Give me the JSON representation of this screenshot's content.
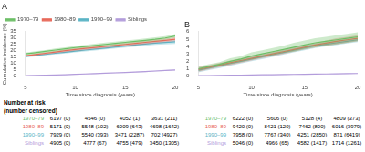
{
  "chart_data": [
    {
      "type": "line",
      "title": "A",
      "xlabel": "Time since diagnosis (years)",
      "ylabel": "Cumulative incidence (%)",
      "xlim": [
        5,
        20
      ],
      "ylim": [
        0,
        35
      ],
      "xticks": [
        5,
        10,
        15,
        20
      ],
      "yticks": [
        0,
        5,
        10,
        15,
        20,
        25,
        30,
        35
      ],
      "grid": false,
      "legend": "upper left",
      "x": [
        5,
        6,
        7,
        8,
        9,
        10,
        11,
        12,
        13,
        14,
        15,
        16,
        17,
        18,
        19,
        20
      ],
      "series": [
        {
          "name": "1970–79",
          "color": "#6dbf67",
          "values": [
            17.5,
            18.5,
            19.5,
            20.5,
            21.5,
            22.5,
            23.3,
            24.2,
            25.0,
            25.8,
            26.6,
            27.4,
            28.2,
            29.0,
            30.0,
            31.5
          ],
          "lower": [
            16.5,
            17.4,
            18.4,
            19.3,
            20.3,
            21.2,
            22.0,
            22.8,
            23.6,
            24.4,
            25.2,
            26.0,
            26.8,
            27.5,
            28.5,
            30.0
          ],
          "upper": [
            18.5,
            19.6,
            20.6,
            21.7,
            22.7,
            23.8,
            24.6,
            25.6,
            26.4,
            27.2,
            28.0,
            28.8,
            29.6,
            30.5,
            31.5,
            33.0
          ]
        },
        {
          "name": "1980–89",
          "color": "#e8695a",
          "values": [
            16.0,
            17.0,
            18.0,
            19.0,
            20.0,
            21.0,
            21.8,
            22.6,
            23.4,
            24.2,
            25.0,
            25.8,
            26.6,
            27.4,
            28.2,
            29.0
          ],
          "lower": [
            15.2,
            16.1,
            17.1,
            18.0,
            18.9,
            19.8,
            20.6,
            21.3,
            22.1,
            22.8,
            23.6,
            24.4,
            25.2,
            26.0,
            26.8,
            27.5
          ],
          "upper": [
            16.8,
            17.9,
            18.9,
            20.0,
            21.1,
            22.2,
            23.0,
            23.9,
            24.7,
            25.6,
            26.4,
            27.2,
            28.0,
            28.8,
            29.6,
            30.5
          ]
        },
        {
          "name": "1990–99",
          "color": "#5ab4c5",
          "values": [
            15.5,
            16.3,
            17.1,
            18.0,
            18.8,
            19.7,
            20.5,
            21.3,
            22.1,
            22.9,
            23.7,
            24.5,
            25.3,
            26.0,
            26.5,
            27.0
          ],
          "lower": [
            14.8,
            15.5,
            16.3,
            17.1,
            17.9,
            18.7,
            19.5,
            20.2,
            21.0,
            21.7,
            22.5,
            23.2,
            24.0,
            24.6,
            25.0,
            25.4
          ],
          "upper": [
            16.2,
            17.1,
            17.9,
            18.9,
            19.7,
            20.7,
            21.5,
            22.4,
            23.2,
            24.1,
            24.9,
            25.8,
            26.6,
            27.4,
            28.0,
            28.6
          ]
        },
        {
          "name": "Siblings",
          "color": "#b39ddb",
          "values": [
            0.3,
            0.5,
            0.7,
            0.9,
            1.1,
            1.4,
            1.7,
            2.0,
            2.3,
            2.6,
            2.9,
            3.2,
            3.6,
            4.0,
            4.4,
            4.8
          ],
          "lower": [
            0.1,
            0.3,
            0.5,
            0.7,
            0.9,
            1.1,
            1.4,
            1.7,
            2.0,
            2.3,
            2.6,
            2.9,
            3.2,
            3.6,
            4.0,
            4.4
          ],
          "upper": [
            0.5,
            0.7,
            0.9,
            1.1,
            1.3,
            1.7,
            2.0,
            2.3,
            2.6,
            2.9,
            3.2,
            3.5,
            4.0,
            4.4,
            4.8,
            5.2
          ]
        }
      ],
      "table": {
        "header": [
          "Number at risk",
          "(number censored)"
        ],
        "row_labels": [
          "1970–79",
          "1980–89",
          "1990–99",
          "Siblings"
        ],
        "row_colors": [
          "#6dbf67",
          "#e8695a",
          "#5ab4c5",
          "#b39ddb"
        ],
        "rows": [
          [
            "6197 (0)",
            "4546 (0)",
            "4052 (1)",
            "3631 (211)"
          ],
          [
            "5171 (0)",
            "5548 (102)",
            "6009 (643)",
            "4698 (1642)"
          ],
          [
            "7929 (0)",
            "5540 (393)",
            "3471 (2287)",
            "702 (4927)"
          ],
          [
            "4905 (0)",
            "4777 (67)",
            "4755 (479)",
            "3450 (1305)"
          ]
        ]
      }
    },
    {
      "type": "line",
      "title": "B",
      "xlabel": "Time since diagnosis (years)",
      "xlim": [
        5,
        20
      ],
      "ylim": [
        0,
        6
      ],
      "xticks": [
        5,
        10,
        15,
        20
      ],
      "yticks": [
        0,
        1,
        2,
        3,
        4,
        5,
        6
      ],
      "grid": false,
      "x": [
        5,
        6,
        7,
        8,
        9,
        10,
        11,
        12,
        13,
        14,
        15,
        16,
        17,
        18,
        19,
        20
      ],
      "series": [
        {
          "name": "1970–79",
          "color": "#6dbf67",
          "values": [
            1.0,
            1.3,
            1.6,
            2.0,
            2.3,
            2.7,
            3.0,
            3.3,
            3.6,
            3.9,
            4.2,
            4.5,
            4.7,
            4.9,
            5.1,
            5.3
          ],
          "lower": [
            0.7,
            1.0,
            1.3,
            1.6,
            1.9,
            2.2,
            2.5,
            2.8,
            3.1,
            3.3,
            3.6,
            3.9,
            4.1,
            4.3,
            4.5,
            4.7
          ],
          "upper": [
            1.3,
            1.6,
            1.9,
            2.4,
            2.7,
            3.2,
            3.5,
            3.8,
            4.1,
            4.5,
            4.8,
            5.1,
            5.3,
            5.5,
            5.7,
            5.9
          ]
        },
        {
          "name": "1980–89",
          "color": "#e8695a",
          "values": [
            0.9,
            1.2,
            1.5,
            1.8,
            2.1,
            2.4,
            2.7,
            3.0,
            3.3,
            3.6,
            3.9,
            4.2,
            4.45,
            4.7,
            4.9,
            5.1
          ],
          "lower": [
            0.6,
            0.9,
            1.2,
            1.5,
            1.8,
            2.1,
            2.4,
            2.7,
            3.0,
            3.3,
            3.6,
            3.9,
            4.1,
            4.3,
            4.5,
            4.7
          ],
          "upper": [
            1.2,
            1.5,
            1.8,
            2.1,
            2.4,
            2.7,
            3.0,
            3.3,
            3.6,
            3.9,
            4.2,
            4.5,
            4.8,
            5.1,
            5.3,
            5.5
          ]
        },
        {
          "name": "1990–99",
          "color": "#5ab4c5",
          "values": [
            0.8,
            1.1,
            1.4,
            1.7,
            2.0,
            2.3,
            2.6,
            2.9,
            3.2,
            3.5,
            3.8,
            4.1,
            4.3,
            4.5,
            4.7,
            4.9
          ],
          "lower": [
            0.5,
            0.8,
            1.1,
            1.4,
            1.7,
            2.0,
            2.3,
            2.6,
            2.9,
            3.2,
            3.5,
            3.8,
            4.0,
            4.2,
            4.4,
            4.6
          ],
          "upper": [
            1.1,
            1.4,
            1.7,
            2.0,
            2.3,
            2.6,
            2.9,
            3.2,
            3.5,
            3.8,
            4.1,
            4.4,
            4.6,
            4.8,
            5.0,
            5.2
          ]
        },
        {
          "name": "Siblings",
          "color": "#b39ddb",
          "values": [
            0.05,
            0.07,
            0.09,
            0.11,
            0.13,
            0.15,
            0.17,
            0.19,
            0.21,
            0.23,
            0.25,
            0.27,
            0.29,
            0.31,
            0.33,
            0.35
          ],
          "lower": [
            0.02,
            0.04,
            0.06,
            0.08,
            0.1,
            0.12,
            0.14,
            0.16,
            0.18,
            0.2,
            0.22,
            0.24,
            0.26,
            0.28,
            0.3,
            0.32
          ],
          "upper": [
            0.08,
            0.1,
            0.12,
            0.14,
            0.16,
            0.18,
            0.2,
            0.22,
            0.24,
            0.26,
            0.28,
            0.3,
            0.32,
            0.34,
            0.36,
            0.38
          ]
        }
      ],
      "table": {
        "row_labels": [
          "1970–79",
          "1980–89",
          "1990–99",
          "Siblings"
        ],
        "row_colors": [
          "#6dbf67",
          "#e8695a",
          "#5ab4c5",
          "#b39ddb"
        ],
        "rows": [
          [
            "6222 (0)",
            "5606 (0)",
            "5128 (4)",
            "4809 (373)"
          ],
          [
            "9420 (0)",
            "8421 (120)",
            "7462 (800)",
            "6016 (3979)"
          ],
          [
            "7958 (0)",
            "7767 (340)",
            "4251 (2850)",
            "871 (6419)"
          ],
          [
            "5046 (0)",
            "4966 (65)",
            "4582 (1417)",
            "1714 (1261)"
          ]
        ]
      }
    }
  ]
}
